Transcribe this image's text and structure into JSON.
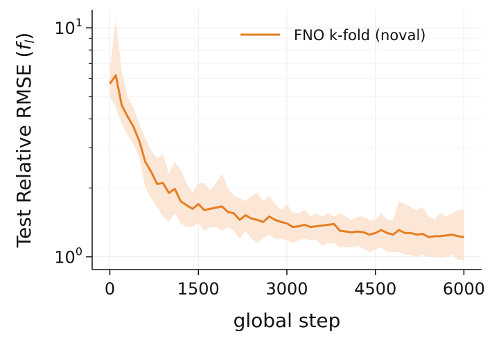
{
  "chart_data": {
    "type": "line",
    "title": "",
    "xlabel": "global step",
    "ylabel_main": "Test Relative RMSE (",
    "ylabel_var": "f",
    "ylabel_sub": "l",
    "ylabel_close": ")",
    "xlim": [
      -300,
      6300
    ],
    "ylim": [
      0.88,
      12.0
    ],
    "yscale": "log",
    "grid": true,
    "legend_position": "top-right",
    "x_ticks": [
      0,
      1500,
      3000,
      4500,
      6000
    ],
    "x_tick_labels": [
      "0",
      "1500",
      "3000",
      "4500",
      "6000"
    ],
    "y_ticks": [
      1,
      10
    ],
    "y_tick_labels": [
      {
        "base": "10",
        "exp": "0"
      },
      {
        "base": "10",
        "exp": "1"
      }
    ],
    "colors": {
      "line": "#e67e22",
      "band": "#fbe2cf"
    },
    "series": [
      {
        "name": "FNO k-fold (noval)",
        "x": [
          0,
          100,
          200,
          300,
          400,
          500,
          600,
          700,
          800,
          900,
          1000,
          1100,
          1200,
          1300,
          1400,
          1500,
          1600,
          1700,
          1800,
          1900,
          2000,
          2100,
          2200,
          2300,
          2400,
          2500,
          2600,
          2700,
          2800,
          2900,
          3000,
          3100,
          3200,
          3300,
          3400,
          3500,
          3600,
          3700,
          3800,
          3900,
          4000,
          4100,
          4200,
          4300,
          4400,
          4500,
          4600,
          4700,
          4800,
          4900,
          5000,
          5100,
          5200,
          5300,
          5400,
          5500,
          5600,
          5700,
          5800,
          5900,
          6000
        ],
        "y": [
          5.7,
          6.2,
          4.6,
          4.1,
          3.7,
          3.2,
          2.6,
          2.35,
          2.08,
          2.1,
          1.9,
          1.98,
          1.75,
          1.68,
          1.62,
          1.7,
          1.6,
          1.62,
          1.64,
          1.66,
          1.57,
          1.55,
          1.45,
          1.52,
          1.47,
          1.45,
          1.42,
          1.5,
          1.45,
          1.42,
          1.4,
          1.35,
          1.36,
          1.38,
          1.35,
          1.36,
          1.37,
          1.38,
          1.39,
          1.3,
          1.29,
          1.28,
          1.29,
          1.28,
          1.25,
          1.27,
          1.31,
          1.27,
          1.25,
          1.31,
          1.27,
          1.27,
          1.25,
          1.26,
          1.22,
          1.23,
          1.23,
          1.24,
          1.25,
          1.23,
          1.22
        ],
        "y_upper": [
          6.6,
          10.8,
          6.5,
          5.0,
          4.5,
          3.8,
          3.3,
          2.9,
          2.7,
          2.8,
          2.3,
          2.6,
          2.4,
          2.1,
          1.9,
          2.1,
          2.1,
          1.95,
          2.1,
          2.3,
          2.0,
          1.85,
          1.8,
          1.75,
          1.85,
          1.9,
          1.75,
          1.85,
          1.7,
          1.6,
          1.7,
          1.55,
          1.55,
          1.6,
          1.5,
          1.55,
          1.5,
          1.55,
          1.5,
          1.55,
          1.5,
          1.45,
          1.5,
          1.5,
          1.45,
          1.45,
          1.55,
          1.45,
          1.45,
          1.75,
          1.7,
          1.65,
          1.6,
          1.65,
          1.5,
          1.45,
          1.55,
          1.5,
          1.55,
          1.6,
          1.6
        ],
        "y_lower": [
          5.0,
          4.5,
          3.8,
          3.4,
          3.1,
          2.7,
          2.0,
          1.8,
          1.65,
          1.5,
          1.42,
          1.55,
          1.4,
          1.35,
          1.35,
          1.4,
          1.3,
          1.35,
          1.35,
          1.3,
          1.35,
          1.3,
          1.2,
          1.3,
          1.2,
          1.15,
          1.2,
          1.25,
          1.2,
          1.2,
          1.18,
          1.15,
          1.18,
          1.2,
          1.18,
          1.18,
          1.12,
          1.15,
          1.15,
          1.1,
          1.1,
          1.1,
          1.12,
          1.08,
          1.05,
          1.08,
          1.1,
          1.05,
          1.05,
          1.05,
          1.02,
          1.02,
          1.0,
          1.02,
          1.0,
          1.0,
          0.99,
          1.0,
          1.02,
          0.97,
          0.97
        ]
      }
    ]
  }
}
